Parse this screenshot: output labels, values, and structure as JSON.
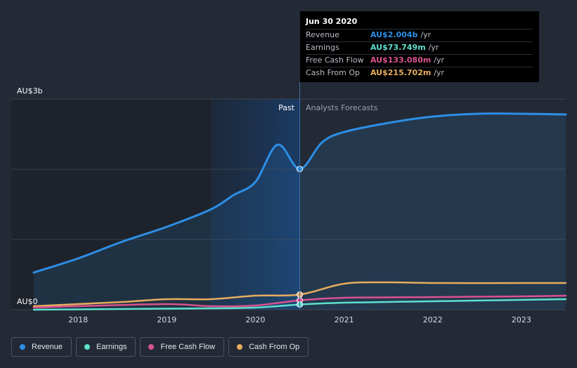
{
  "chart_data": {
    "type": "line",
    "title": "",
    "x_range": [
      2017.5,
      2023.5
    ],
    "ylim": [
      0,
      3.0
    ],
    "y_unit": "AU$ billions",
    "y_axis_labels": {
      "top": "AU$3b",
      "bottom": "AU$0"
    },
    "x_ticks": [
      2018,
      2019,
      2020,
      2021,
      2022,
      2023
    ],
    "x_tick_labels": [
      "2018",
      "2019",
      "2020",
      "2021",
      "2022",
      "2023"
    ],
    "divider_x": 2020.5,
    "past_label": "Past",
    "forecast_label": "Analysts Forecasts",
    "series": [
      {
        "name": "Revenue",
        "color": "#2d8fe6",
        "fill": true,
        "points": [
          [
            2017.5,
            0.53
          ],
          [
            2018.0,
            0.73
          ],
          [
            2018.5,
            0.97
          ],
          [
            2019.0,
            1.18
          ],
          [
            2019.5,
            1.43
          ],
          [
            2019.75,
            1.63
          ],
          [
            2020.0,
            1.82
          ],
          [
            2020.25,
            2.35
          ],
          [
            2020.5,
            2.004
          ],
          [
            2020.75,
            2.38
          ],
          [
            2021.0,
            2.53
          ],
          [
            2021.5,
            2.66
          ],
          [
            2022.0,
            2.75
          ],
          [
            2022.5,
            2.79
          ],
          [
            2023.0,
            2.79
          ],
          [
            2023.5,
            2.78
          ]
        ]
      },
      {
        "name": "Earnings",
        "color": "#5ee0cc",
        "fill": false,
        "points": [
          [
            2017.5,
            0.0
          ],
          [
            2018.5,
            0.01
          ],
          [
            2019.5,
            0.02
          ],
          [
            2020.0,
            0.03
          ],
          [
            2020.5,
            0.073749
          ],
          [
            2021.0,
            0.1
          ],
          [
            2022.0,
            0.12
          ],
          [
            2023.0,
            0.14
          ],
          [
            2023.5,
            0.15
          ]
        ]
      },
      {
        "name": "Free Cash Flow",
        "color": "#d9528f",
        "fill": false,
        "points": [
          [
            2017.5,
            0.03
          ],
          [
            2018.0,
            0.05
          ],
          [
            2019.0,
            0.08
          ],
          [
            2019.5,
            0.05
          ],
          [
            2020.0,
            0.06
          ],
          [
            2020.5,
            0.13308
          ],
          [
            2021.0,
            0.17
          ],
          [
            2022.0,
            0.18
          ],
          [
            2023.0,
            0.19
          ],
          [
            2023.5,
            0.2
          ]
        ]
      },
      {
        "name": "Cash From Op",
        "color": "#e8ad5e",
        "fill": false,
        "points": [
          [
            2017.5,
            0.05
          ],
          [
            2018.0,
            0.08
          ],
          [
            2018.5,
            0.11
          ],
          [
            2019.0,
            0.15
          ],
          [
            2019.5,
            0.15
          ],
          [
            2020.0,
            0.2
          ],
          [
            2020.5,
            0.215702
          ],
          [
            2021.0,
            0.37
          ],
          [
            2021.5,
            0.39
          ],
          [
            2022.0,
            0.38
          ],
          [
            2023.0,
            0.38
          ],
          [
            2023.5,
            0.38
          ]
        ]
      }
    ]
  },
  "tooltip": {
    "date": "Jun 30 2020",
    "rows": [
      {
        "name": "Revenue",
        "value": "AU$2.004b",
        "unit": "/yr",
        "color": "#2d8fe6"
      },
      {
        "name": "Earnings",
        "value": "AU$73.749m",
        "unit": "/yr",
        "color": "#5ee0cc"
      },
      {
        "name": "Free Cash Flow",
        "value": "AU$133.080m",
        "unit": "/yr",
        "color": "#d9528f"
      },
      {
        "name": "Cash From Op",
        "value": "AU$215.702m",
        "unit": "/yr",
        "color": "#e8ad5e"
      }
    ]
  },
  "legend": [
    {
      "label": "Revenue",
      "color": "#2d8fe6"
    },
    {
      "label": "Earnings",
      "color": "#5ee0cc"
    },
    {
      "label": "Free Cash Flow",
      "color": "#d9528f"
    },
    {
      "label": "Cash From Op",
      "color": "#e8ad5e"
    }
  ]
}
